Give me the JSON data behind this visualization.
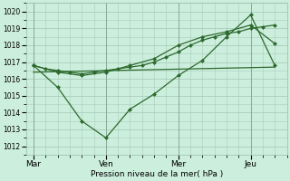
{
  "background_color": "#cceedd",
  "grid_color": "#aaccbb",
  "line_color": "#2d6a2d",
  "xlabel": "Pression niveau de la mer( hPa )",
  "ylim": [
    1011.5,
    1020.5
  ],
  "yticks": [
    1012,
    1013,
    1014,
    1015,
    1016,
    1017,
    1018,
    1019,
    1020
  ],
  "xtick_labels": [
    "Mar",
    "Ven",
    "Mer",
    "Jeu"
  ],
  "xtick_positions": [
    0,
    3,
    6,
    9
  ],
  "xlim": [
    -0.3,
    10.5
  ],
  "series1_smooth": {
    "x": [
      0,
      0.5,
      1,
      1.5,
      2,
      2.5,
      3,
      3.5,
      4,
      4.5,
      5,
      5.5,
      6,
      6.5,
      7,
      7.5,
      8,
      8.5,
      9,
      9.5,
      10
    ],
    "y": [
      1016.8,
      1016.6,
      1016.5,
      1016.4,
      1016.3,
      1016.4,
      1016.5,
      1016.6,
      1016.7,
      1016.8,
      1017.0,
      1017.3,
      1017.6,
      1018.0,
      1018.3,
      1018.5,
      1018.7,
      1018.8,
      1019.0,
      1019.1,
      1019.2
    ]
  },
  "series2_medium": {
    "x": [
      0,
      1,
      2,
      3,
      4,
      5,
      6,
      7,
      8,
      9,
      10
    ],
    "y": [
      1016.8,
      1016.4,
      1016.2,
      1016.4,
      1016.8,
      1017.2,
      1018.0,
      1018.5,
      1018.8,
      1019.2,
      1018.1
    ]
  },
  "series3_jagged": {
    "x": [
      0,
      1,
      2,
      3,
      4,
      5,
      6,
      7,
      8,
      9,
      10
    ],
    "y": [
      1016.8,
      1015.5,
      1013.5,
      1012.5,
      1014.2,
      1015.1,
      1016.2,
      1017.1,
      1018.5,
      1019.8,
      1016.8
    ]
  },
  "series4_trend": {
    "x": [
      0,
      10
    ],
    "y": [
      1016.4,
      1016.7
    ]
  }
}
